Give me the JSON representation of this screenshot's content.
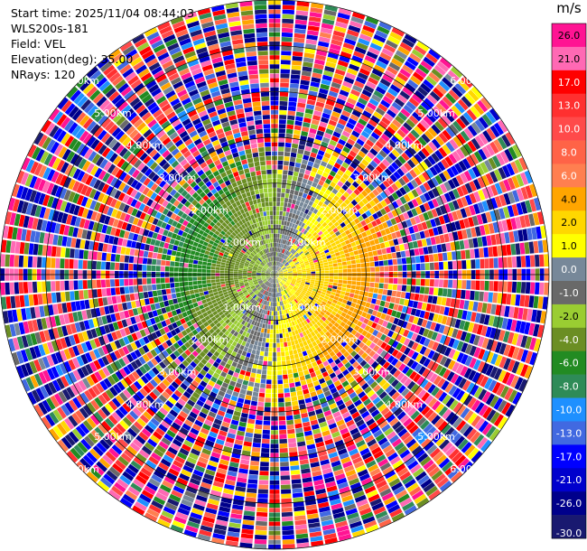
{
  "info": {
    "start_time": "Start time: 2025/11/04 08:44:03",
    "instrument": "WLS200s-181",
    "field": "Field: VEL",
    "elevation": "Elevation(deg): 35.00",
    "nrays": "NRays: 120"
  },
  "chart_data": {
    "type": "heatmap",
    "projection": "polar (PPI)",
    "field": "VEL",
    "units": "m/s",
    "elevation_deg": 35.0,
    "nrays": 120,
    "range_max_km": 6.0,
    "range_rings_km": [
      1,
      2,
      3,
      4,
      5,
      6
    ],
    "ring_labels": [
      "1.00km",
      "2.00km",
      "3.00km",
      "4.00km",
      "5.00km",
      "6.00km"
    ],
    "colorbar": {
      "title": "m/s",
      "ticks": [
        "26.0",
        "21.0",
        "17.0",
        "13.0",
        "10.0",
        "8.0",
        "6.0",
        "4.0",
        "2.0",
        "1.0",
        "0.0",
        "-1.0",
        "-2.0",
        "-4.0",
        "-6.0",
        "-8.0",
        "-10.0",
        "-13.0",
        "-17.0",
        "-21.0",
        "-26.0",
        "-30.0"
      ],
      "bins": [
        {
          "from": 26,
          "to": 30,
          "color": "#ff1493"
        },
        {
          "from": 21,
          "to": 26,
          "color": "#ff69b4"
        },
        {
          "from": 17,
          "to": 21,
          "color": "#ff0000"
        },
        {
          "from": 13,
          "to": 17,
          "color": "#ff3030"
        },
        {
          "from": 10,
          "to": 13,
          "color": "#ff4a4a"
        },
        {
          "from": 8,
          "to": 10,
          "color": "#ff6347"
        },
        {
          "from": 6,
          "to": 8,
          "color": "#ff7f50"
        },
        {
          "from": 4,
          "to": 6,
          "color": "#ffa500"
        },
        {
          "from": 2,
          "to": 4,
          "color": "#ffd700"
        },
        {
          "from": 1,
          "to": 2,
          "color": "#ffff00"
        },
        {
          "from": 0,
          "to": 1,
          "color": "#778899"
        },
        {
          "from": -1,
          "to": 0,
          "color": "#696969"
        },
        {
          "from": -2,
          "to": -1,
          "color": "#9acd32"
        },
        {
          "from": -4,
          "to": -2,
          "color": "#6b8e23"
        },
        {
          "from": -6,
          "to": -4,
          "color": "#228b22"
        },
        {
          "from": -8,
          "to": -6,
          "color": "#2e8b57"
        },
        {
          "from": -10,
          "to": -8,
          "color": "#1e90ff"
        },
        {
          "from": -13,
          "to": -10,
          "color": "#4169e1"
        },
        {
          "from": -17,
          "to": -13,
          "color": "#0000ff"
        },
        {
          "from": -21,
          "to": -17,
          "color": "#0000cd"
        },
        {
          "from": -26,
          "to": -21,
          "color": "#00008b"
        },
        {
          "from": -30,
          "to": -26,
          "color": "#191970"
        }
      ]
    },
    "structure": "Approaching flow (negative velocities, green/blue) on the west/northwest side, receding flow (positive velocities, yellow/orange/red) on the east/southeast side within about 2.5 km; beyond about 2.5 km the field is noise-dominated with all colors.",
    "grid": true
  }
}
